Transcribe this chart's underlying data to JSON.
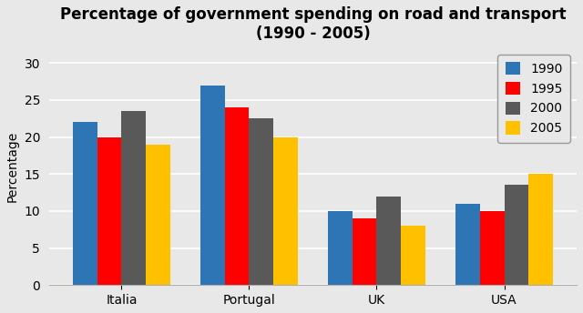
{
  "title": "Percentage of government spending on road and transport\n(1990 - 2005)",
  "ylabel": "Percentage",
  "categories": [
    "Italia",
    "Portugal",
    "UK",
    "USA"
  ],
  "years": [
    "1990",
    "1995",
    "2000",
    "2005"
  ],
  "values": {
    "1990": [
      22,
      27,
      10,
      11
    ],
    "1995": [
      20,
      24,
      9,
      10
    ],
    "2000": [
      23.5,
      22.5,
      12,
      13.5
    ],
    "2005": [
      19,
      20,
      8,
      15
    ]
  },
  "bar_colors": {
    "1990": "#2E75B6",
    "1995": "#FF0000",
    "2000": "#595959",
    "2005": "#FFC000"
  },
  "ylim": [
    0,
    32
  ],
  "yticks": [
    0,
    5,
    10,
    15,
    20,
    25,
    30
  ],
  "background_color": "#E8E8E8",
  "plot_area_color": "#E8E8E8",
  "grid_color": "#FFFFFF",
  "title_fontsize": 12,
  "axis_label_fontsize": 10,
  "tick_fontsize": 10,
  "legend_fontsize": 10,
  "bar_width": 0.19
}
